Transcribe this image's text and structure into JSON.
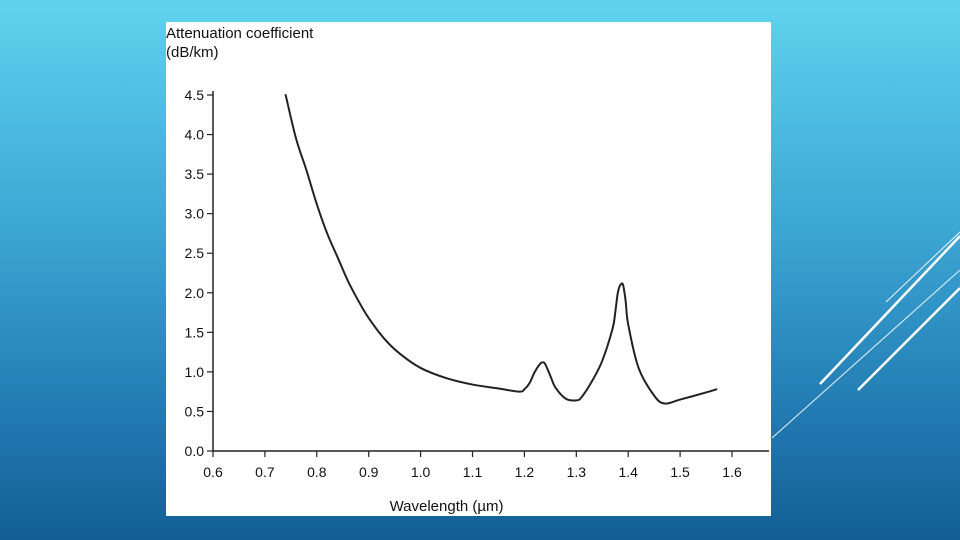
{
  "slide": {
    "background_top": "#5fd3ee",
    "background_bottom": "#145e96",
    "decoration": "white-diagonal-lines"
  },
  "chart_data": {
    "type": "line",
    "ylabel_line1": "Attenuation coefficient",
    "ylabel_line2": "(dB/km)",
    "xlabel": "Wavelength (µm)",
    "xlim": [
      0.6,
      1.6
    ],
    "ylim": [
      0.0,
      4.5
    ],
    "xticks": [
      "0.6",
      "0.7",
      "0.8",
      "0.9",
      "1.0",
      "1.1",
      "1.2",
      "1.3",
      "1.4",
      "1.5",
      "1.6"
    ],
    "yticks": [
      "0.0",
      "0.5",
      "1.0",
      "1.5",
      "2.0",
      "2.5",
      "3.0",
      "3.5",
      "4.0",
      "4.5"
    ],
    "grid": false,
    "legend": "none",
    "line_color": "#222222",
    "series": [
      {
        "x": [
          0.74,
          0.76,
          0.78,
          0.8,
          0.82,
          0.84,
          0.86,
          0.88,
          0.9,
          0.93,
          0.96,
          1.0,
          1.05,
          1.1,
          1.15,
          1.19,
          1.2,
          1.21,
          1.22,
          1.23,
          1.235,
          1.24,
          1.25,
          1.26,
          1.28,
          1.3,
          1.31,
          1.33,
          1.35,
          1.37,
          1.375,
          1.38,
          1.385,
          1.39,
          1.395,
          1.4,
          1.42,
          1.45,
          1.47,
          1.5,
          1.55,
          1.57
        ],
        "y": [
          4.5,
          3.95,
          3.55,
          3.12,
          2.75,
          2.45,
          2.15,
          1.9,
          1.68,
          1.42,
          1.23,
          1.05,
          0.92,
          0.84,
          0.79,
          0.75,
          0.78,
          0.86,
          1.0,
          1.1,
          1.12,
          1.1,
          0.95,
          0.8,
          0.66,
          0.64,
          0.68,
          0.88,
          1.14,
          1.55,
          1.75,
          2.0,
          2.1,
          2.1,
          1.9,
          1.6,
          1.05,
          0.7,
          0.6,
          0.65,
          0.74,
          0.78
        ]
      }
    ]
  }
}
